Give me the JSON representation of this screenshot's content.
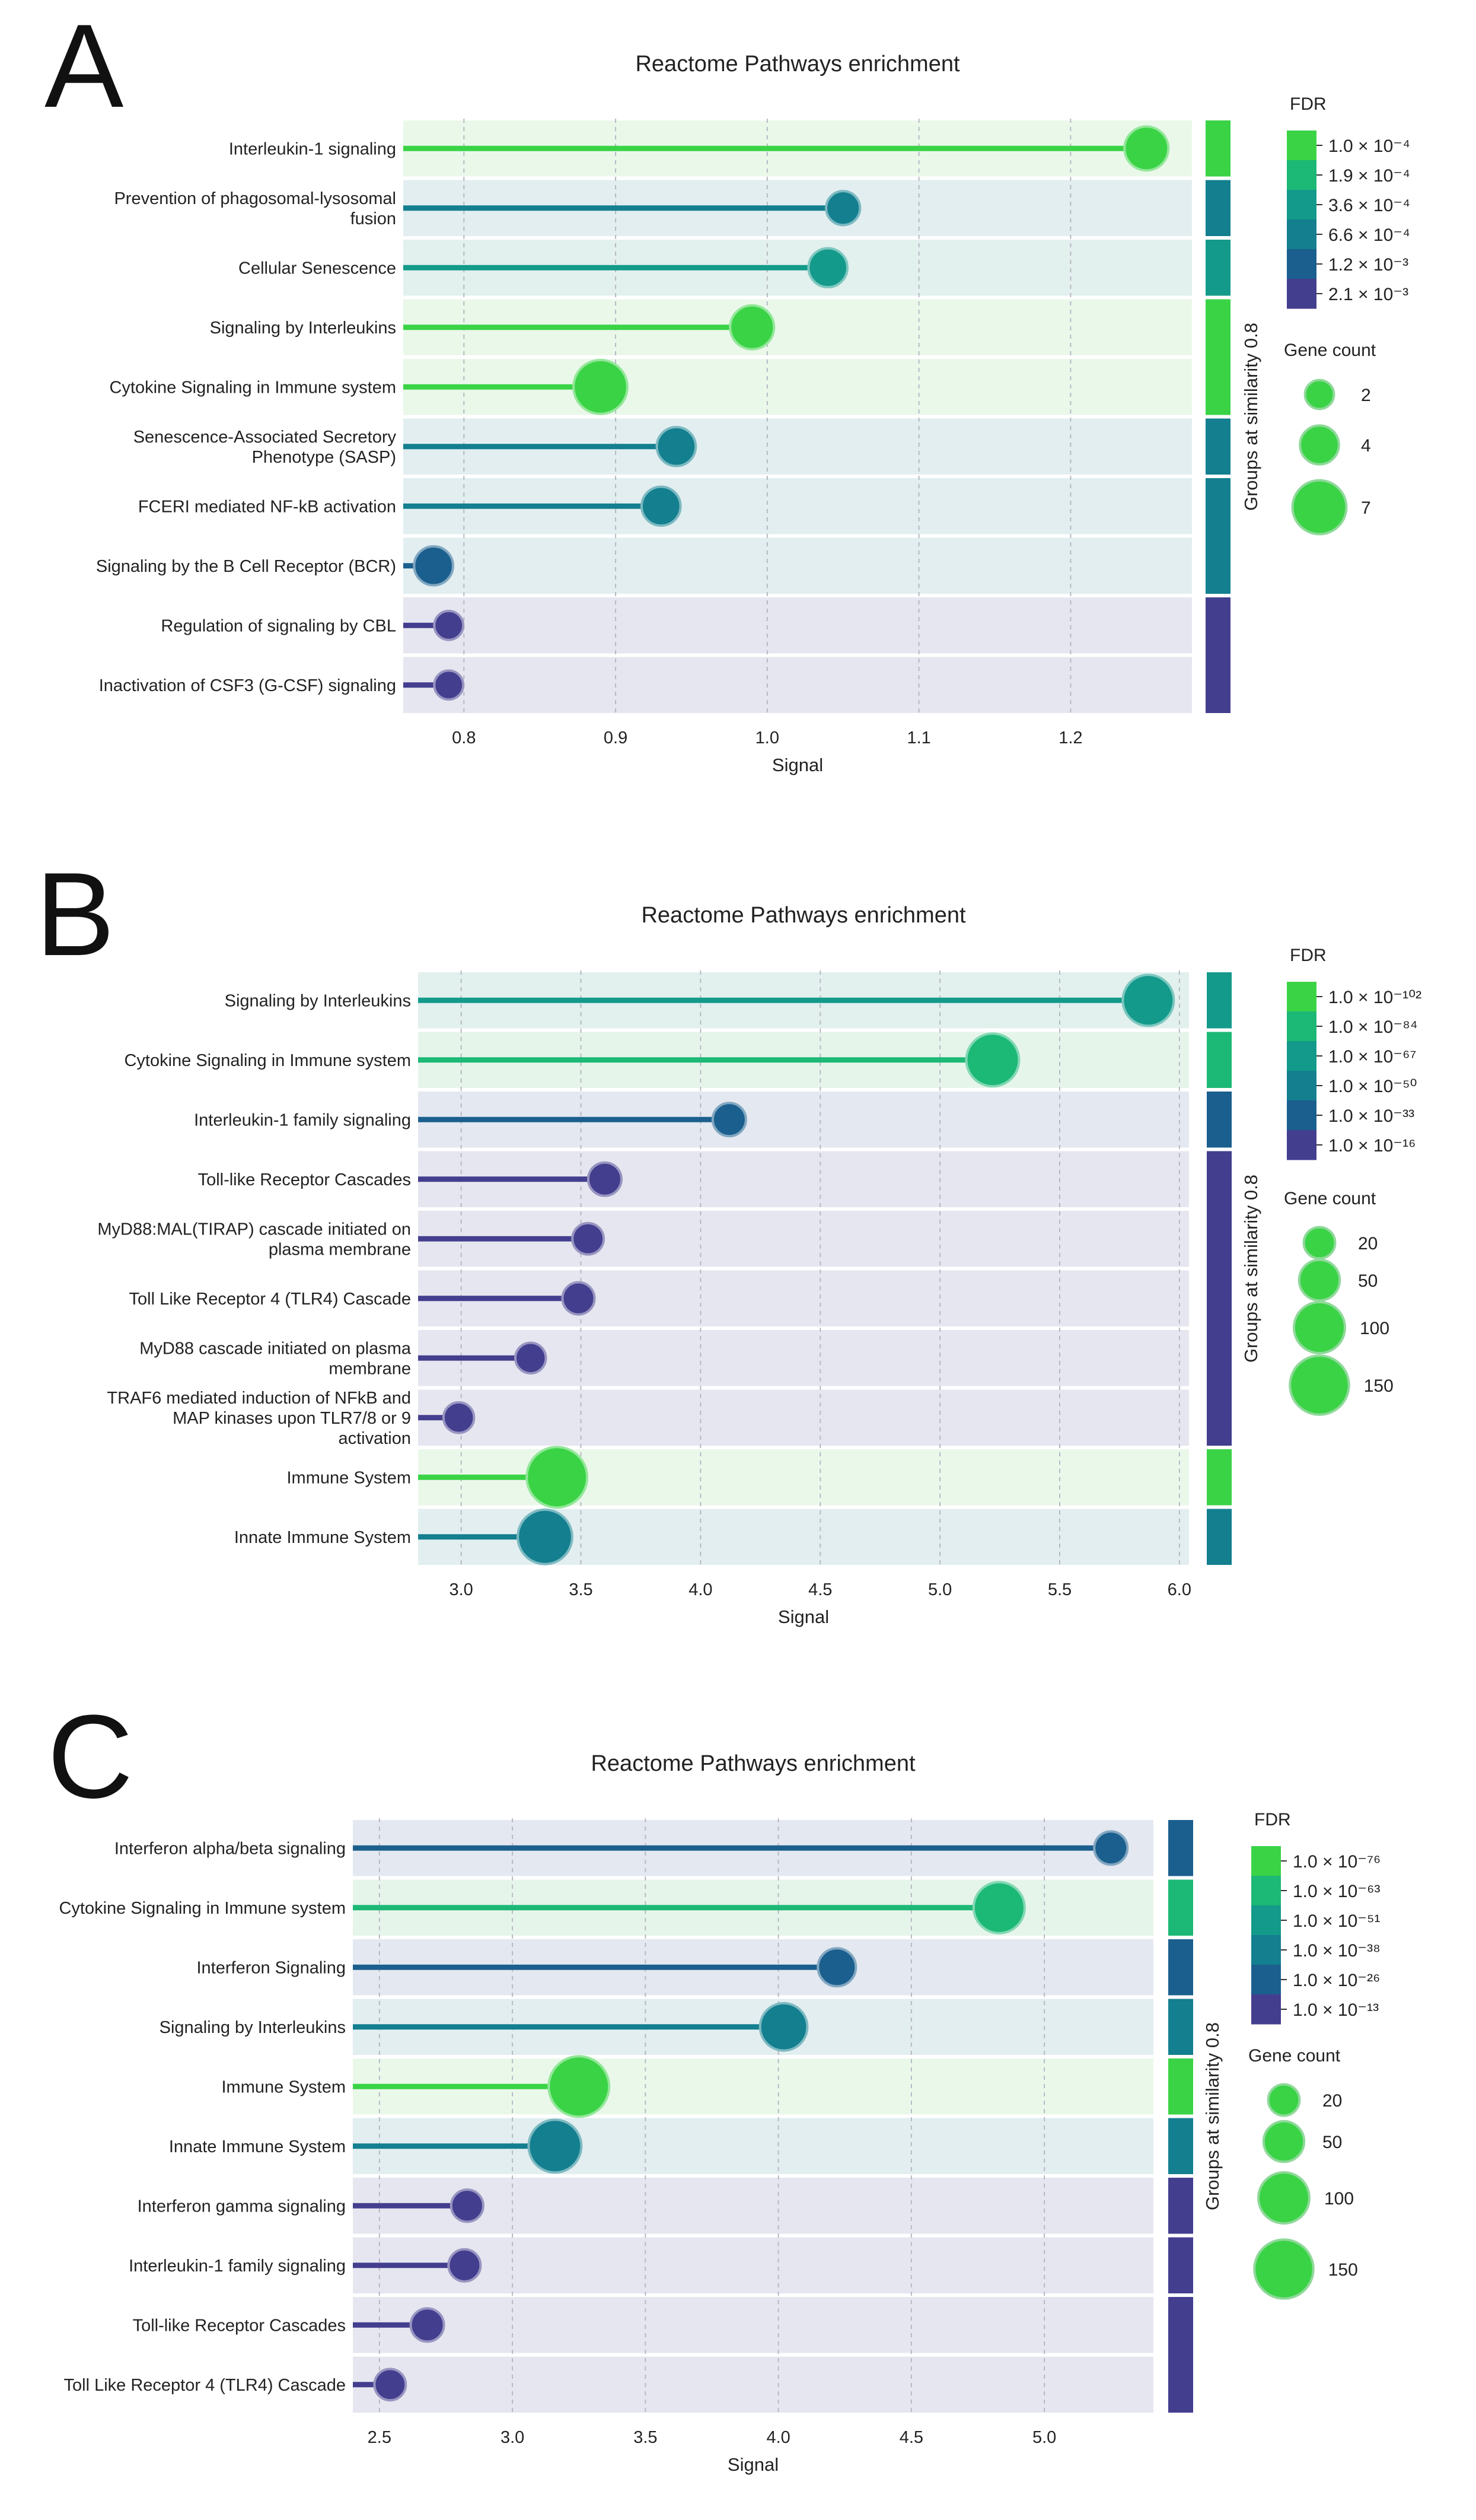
{
  "panels": [
    {
      "letter": "A",
      "chart_data": {
        "type": "lollipop",
        "title": "Reactome Pathways enrichment",
        "xlabel": "Signal",
        "group_axis_label": "Groups at similarity 0.8",
        "xlim": [
          0.76,
          1.28
        ],
        "xticks": [
          0.8,
          0.9,
          1.0,
          1.1,
          1.2
        ],
        "xtick_labels": [
          "0.8",
          "0.9",
          "1.0",
          "1.1",
          "1.2"
        ],
        "categories": [
          "Interleukin-1 signaling",
          "Prevention of phagosomal-lysosomal\nfusion",
          "Cellular Senescence",
          "Signaling by Interleukins",
          "Cytokine Signaling in Immune system",
          "Senescence-Associated Secretory\nPhenotype (SASP)",
          "FCERI mediated NF-kB activation",
          "Signaling by the B Cell Receptor (BCR)",
          "Regulation of signaling by CBL",
          "Inactivation of CSF3 (G-CSF) signaling"
        ],
        "values": [
          1.25,
          1.05,
          1.04,
          0.99,
          0.89,
          0.94,
          0.93,
          0.78,
          0.79,
          0.79
        ],
        "gene_counts": [
          5,
          3,
          4,
          5,
          7,
          4,
          4,
          4,
          2,
          2
        ],
        "colors": [
          "#3ad346",
          "#137f8f",
          "#139a8a",
          "#3ad346",
          "#3ad346",
          "#137f8f",
          "#137f8f",
          "#1b5f8e",
          "#433e8e",
          "#433e8e"
        ],
        "row_bgs": [
          "#eaf8ea",
          "#e2eef0",
          "#e2f0ee",
          "#eaf8ea",
          "#eaf8ea",
          "#e2eef0",
          "#e2eef0",
          "#e2eef0",
          "#e6e6f0",
          "#e6e6f0"
        ],
        "groups": [
          {
            "start": 0,
            "end": 0,
            "color": "#3ad346"
          },
          {
            "start": 1,
            "end": 1,
            "color": "#137f8f"
          },
          {
            "start": 2,
            "end": 2,
            "color": "#139a8a"
          },
          {
            "start": 3,
            "end": 4,
            "color": "#3ad346"
          },
          {
            "start": 5,
            "end": 5,
            "color": "#137f8f"
          },
          {
            "start": 6,
            "end": 7,
            "color": "#137f8f"
          },
          {
            "start": 8,
            "end": 9,
            "color": "#433e8e"
          }
        ],
        "fdr_legend": {
          "title": "FDR",
          "labels": [
            "1.0 × 10⁻⁴",
            "1.9 × 10⁻⁴",
            "3.6 × 10⁻⁴",
            "6.6 × 10⁻⁴",
            "1.2 × 10⁻³",
            "2.1 × 10⁻³"
          ],
          "colors": [
            "#3ad346",
            "#1cb876",
            "#139a8a",
            "#137f8f",
            "#1b5f8e",
            "#433e8e"
          ]
        },
        "size_legend": {
          "title": "Gene count",
          "values": [
            2,
            4,
            7
          ],
          "labels": [
            "2",
            "4",
            "7"
          ]
        }
      }
    },
    {
      "letter": "B",
      "chart_data": {
        "type": "lollipop",
        "title": "Reactome Pathways enrichment",
        "xlabel": "Signal",
        "group_axis_label": "Groups at similarity 0.8",
        "xlim": [
          2.82,
          6.04
        ],
        "xticks": [
          3.0,
          3.5,
          4.0,
          4.5,
          5.0,
          5.5,
          6.0
        ],
        "xtick_labels": [
          "3.0",
          "3.5",
          "4.0",
          "4.5",
          "5.0",
          "5.5",
          "6.0"
        ],
        "categories": [
          "Signaling by Interleukins",
          "Cytokine Signaling in Immune system",
          "Interleukin-1 family signaling",
          "Toll-like Receptor Cascades",
          "MyD88:MAL(TIRAP) cascade initiated on\nplasma membrane",
          "Toll Like Receptor 4 (TLR4) Cascade",
          "MyD88 cascade initiated on plasma\nmembrane",
          "TRAF6 mediated induction of NFkB and\nMAP kinases upon TLR7/8 or 9\nactivation",
          "Immune System",
          "Innate Immune System"
        ],
        "values": [
          5.87,
          5.22,
          4.12,
          3.6,
          3.53,
          3.49,
          3.29,
          2.99,
          3.4,
          3.35
        ],
        "gene_counts": [
          100,
          110,
          25,
          25,
          20,
          22,
          18,
          18,
          160,
          120
        ],
        "colors": [
          "#139a8a",
          "#1cb876",
          "#1b5f8e",
          "#433e8e",
          "#433e8e",
          "#433e8e",
          "#433e8e",
          "#433e8e",
          "#3ad346",
          "#137f8f"
        ],
        "row_bgs": [
          "#e2f0ee",
          "#e6f5ea",
          "#e4e8f0",
          "#e6e6f0",
          "#e6e6f0",
          "#e6e6f0",
          "#e6e6f0",
          "#e6e6f0",
          "#eaf8ea",
          "#e2eef0"
        ],
        "groups": [
          {
            "start": 0,
            "end": 0,
            "color": "#139a8a"
          },
          {
            "start": 1,
            "end": 1,
            "color": "#1cb876"
          },
          {
            "start": 2,
            "end": 2,
            "color": "#1b5f8e"
          },
          {
            "start": 3,
            "end": 7,
            "color": "#433e8e"
          },
          {
            "start": 8,
            "end": 8,
            "color": "#3ad346"
          },
          {
            "start": 9,
            "end": 9,
            "color": "#137f8f"
          }
        ],
        "fdr_legend": {
          "title": "FDR",
          "labels": [
            "1.0 × 10⁻¹⁰²",
            "1.0 × 10⁻⁸⁴",
            "1.0 × 10⁻⁶⁷",
            "1.0 × 10⁻⁵⁰",
            "1.0 × 10⁻³³",
            "1.0 × 10⁻¹⁶"
          ],
          "colors": [
            "#3ad346",
            "#1cb876",
            "#139a8a",
            "#137f8f",
            "#1b5f8e",
            "#433e8e"
          ]
        },
        "size_legend": {
          "title": "Gene count",
          "values": [
            20,
            50,
            100,
            150
          ],
          "labels": [
            "20",
            "50",
            "100",
            "150"
          ]
        }
      }
    },
    {
      "letter": "C",
      "chart_data": {
        "type": "lollipop",
        "title": "Reactome Pathways enrichment",
        "xlabel": "Signal",
        "group_axis_label": "Groups at similarity 0.8",
        "xlim": [
          2.4,
          5.41
        ],
        "xticks": [
          2.5,
          3.0,
          3.5,
          4.0,
          4.5,
          5.0
        ],
        "xtick_labels": [
          "2.5",
          "3.0",
          "3.5",
          "4.0",
          "4.5",
          "5.0"
        ],
        "categories": [
          "Interferon alpha/beta signaling",
          "Cytokine Signaling in Immune system",
          "Interferon Signaling",
          "Signaling by Interleukins",
          "Immune System",
          "Innate Immune System",
          "Interferon gamma signaling",
          "Interleukin-1 family signaling",
          "Toll-like Receptor Cascades",
          "Toll Like Receptor 4 (TLR4) Cascade"
        ],
        "values": [
          5.25,
          4.83,
          4.22,
          4.02,
          3.25,
          3.16,
          2.83,
          2.82,
          2.68,
          2.54
        ],
        "gene_counts": [
          25,
          100,
          40,
          80,
          160,
          110,
          22,
          22,
          25,
          20
        ],
        "colors": [
          "#1b5f8e",
          "#1cb876",
          "#1b5f8e",
          "#137f8f",
          "#3ad346",
          "#137f8f",
          "#433e8e",
          "#433e8e",
          "#433e8e",
          "#433e8e"
        ],
        "row_bgs": [
          "#e4e8f0",
          "#e6f5ea",
          "#e4e8f0",
          "#e2eef0",
          "#eaf8ea",
          "#e2eef0",
          "#e6e6f0",
          "#e6e6f0",
          "#e6e6f0",
          "#e6e6f0"
        ],
        "groups": [
          {
            "start": 0,
            "end": 0,
            "color": "#1b5f8e"
          },
          {
            "start": 1,
            "end": 1,
            "color": "#1cb876"
          },
          {
            "start": 2,
            "end": 2,
            "color": "#1b5f8e"
          },
          {
            "start": 3,
            "end": 3,
            "color": "#137f8f"
          },
          {
            "start": 4,
            "end": 4,
            "color": "#3ad346"
          },
          {
            "start": 5,
            "end": 5,
            "color": "#137f8f"
          },
          {
            "start": 6,
            "end": 6,
            "color": "#433e8e"
          },
          {
            "start": 7,
            "end": 7,
            "color": "#433e8e"
          },
          {
            "start": 8,
            "end": 9,
            "color": "#433e8e"
          }
        ],
        "fdr_legend": {
          "title": "FDR",
          "labels": [
            "1.0 × 10⁻⁷⁶",
            "1.0 × 10⁻⁶³",
            "1.0 × 10⁻⁵¹",
            "1.0 × 10⁻³⁸",
            "1.0 × 10⁻²⁶",
            "1.0 × 10⁻¹³"
          ],
          "colors": [
            "#3ad346",
            "#1cb876",
            "#139a8a",
            "#137f8f",
            "#1b5f8e",
            "#433e8e"
          ]
        },
        "size_legend": {
          "title": "Gene count",
          "values": [
            20,
            50,
            100,
            150
          ],
          "labels": [
            "20",
            "50",
            "100",
            "150"
          ]
        }
      }
    }
  ]
}
